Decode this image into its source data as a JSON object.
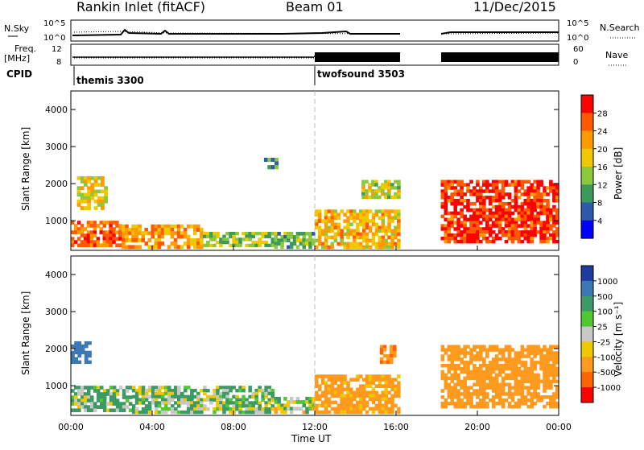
{
  "header": {
    "station": "Rankin Inlet (fitACF)",
    "beam": "Beam 01",
    "date": "11/Dec/2015"
  },
  "top_panels": {
    "nsky_label": "N.Sky",
    "nsky_ticks": [
      "10^5",
      "10^0"
    ],
    "nsearch_label": "N.Search",
    "freq_label_1": "Freq.",
    "freq_label_2": "[MHz]",
    "freq_ticks": [
      "12",
      "8"
    ],
    "nave_label": "Nave",
    "nave_ticks": [
      "60",
      "0"
    ],
    "cpid_label": "CPID",
    "cpid_entries": [
      {
        "name": "themis 3300",
        "start_hour": 0
      },
      {
        "name": "twofsound 3503",
        "start_hour": 12
      }
    ]
  },
  "power_colorbar": {
    "label": "Power [dB]",
    "ticks": [
      "28",
      "24",
      "20",
      "16",
      "12",
      "8",
      "4"
    ],
    "colors": [
      "#ff0000",
      "#ff5a00",
      "#ff9a00",
      "#f0c800",
      "#8cc83c",
      "#3c9a5a",
      "#2d5aaa",
      "#0000ff"
    ]
  },
  "velocity_colorbar": {
    "label": "Velocity [m s⁻¹]",
    "ticks": [
      "1000",
      "500",
      "100",
      "25",
      "-25",
      "-100",
      "-500",
      "-1000"
    ],
    "colors": [
      "#1e3ca0",
      "#3c78b4",
      "#3c9a64",
      "#50c832",
      "#c8c8c8",
      "#f0c800",
      "#ff9a1e",
      "#ff6400",
      "#ff0000"
    ]
  },
  "chart_data": [
    {
      "type": "heatmap",
      "title": "Power",
      "ylabel": "Slant Range [km]",
      "xlabel": "",
      "ylim": [
        200,
        4500
      ],
      "xlim": [
        0,
        24
      ],
      "yticks": [
        "4000",
        "3000",
        "2000",
        "1000"
      ],
      "series": [
        {
          "x": [
            0,
            2.5
          ],
          "y": [
            300,
            1000
          ],
          "value": 24
        },
        {
          "x": [
            0.3,
            1.8
          ],
          "y": [
            1300,
            2200
          ],
          "value": 16
        },
        {
          "x": [
            2.5,
            6.5
          ],
          "y": [
            250,
            900
          ],
          "value": 20
        },
        {
          "x": [
            6.5,
            10
          ],
          "y": [
            300,
            700
          ],
          "value": 12
        },
        {
          "x": [
            10,
            12
          ],
          "y": [
            250,
            700
          ],
          "value": 10
        },
        {
          "x": [
            12,
            16.2
          ],
          "y": [
            250,
            1300
          ],
          "value": 18
        },
        {
          "x": [
            14.3,
            16.2
          ],
          "y": [
            1600,
            2100
          ],
          "value": 14
        },
        {
          "x": [
            18.2,
            24
          ],
          "y": [
            400,
            2100
          ],
          "value": 26
        },
        {
          "x": [
            9.5,
            10.2
          ],
          "y": [
            2400,
            2700
          ],
          "value": 8
        }
      ]
    },
    {
      "type": "heatmap",
      "title": "Velocity",
      "ylabel": "Slant Range [km]",
      "xlabel": "Time UT",
      "ylim": [
        200,
        4500
      ],
      "xlim": [
        0,
        24
      ],
      "yticks": [
        "4000",
        "3000",
        "2000",
        "1000"
      ],
      "series": [
        {
          "x": [
            0,
            1
          ],
          "y": [
            1600,
            2200
          ],
          "value": 500
        },
        {
          "x": [
            0,
            3
          ],
          "y": [
            300,
            1000
          ],
          "value": 100
        },
        {
          "x": [
            3,
            10
          ],
          "y": [
            250,
            1000
          ],
          "value": 60
        },
        {
          "x": [
            10,
            12
          ],
          "y": [
            250,
            700
          ],
          "value": 0
        },
        {
          "x": [
            12,
            16.2
          ],
          "y": [
            250,
            1300
          ],
          "value": -200
        },
        {
          "x": [
            15.2,
            16
          ],
          "y": [
            1600,
            2100
          ],
          "value": -500
        },
        {
          "x": [
            18.2,
            24
          ],
          "y": [
            400,
            2100
          ],
          "value": -300
        }
      ]
    }
  ],
  "x_axis": {
    "ticks": [
      "00:00",
      "04:00",
      "08:00",
      "12:00",
      "16:00",
      "20:00",
      "00:00"
    ],
    "label": "Time UT"
  }
}
